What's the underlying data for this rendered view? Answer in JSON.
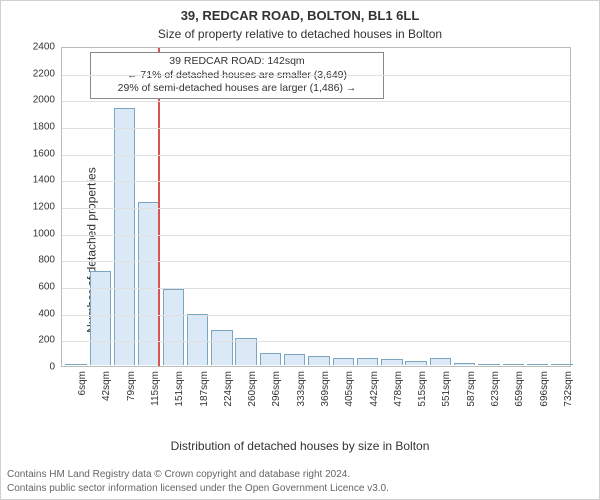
{
  "titles": {
    "line1": "39, REDCAR ROAD, BOLTON, BL1 6LL",
    "line2": "Size of property relative to detached houses in Bolton"
  },
  "axes": {
    "ylabel": "Number of detached properties",
    "xlabel": "Distribution of detached houses by size in Bolton",
    "ylim": [
      0,
      2400
    ],
    "ytick_step": 200,
    "label_fontsize": 12,
    "tick_fontsize": 10,
    "grid_color": "#e0e0e0",
    "axis_color": "#bbbbbb"
  },
  "chart": {
    "type": "histogram",
    "background_color": "#ffffff",
    "bar_fill": "#dbe9f6",
    "bar_stroke": "#7aa6c2",
    "bar_width": 0.8,
    "categories": [
      "6sqm",
      "42sqm",
      "79sqm",
      "115sqm",
      "151sqm",
      "187sqm",
      "224sqm",
      "260sqm",
      "296sqm",
      "333sqm",
      "369sqm",
      "405sqm",
      "442sqm",
      "478sqm",
      "515sqm",
      "551sqm",
      "587sqm",
      "623sqm",
      "659sqm",
      "696sqm",
      "732sqm"
    ],
    "values": [
      0,
      700,
      1930,
      1220,
      565,
      380,
      257,
      196,
      84,
      77,
      60,
      48,
      42,
      36,
      24,
      46,
      10,
      0,
      0,
      0,
      0
    ]
  },
  "marker": {
    "value_sqm": 142,
    "color": "#d9534f",
    "range": {
      "min_sqm": 6,
      "max_sqm": 732
    },
    "annotation": {
      "line1": "39 REDCAR ROAD: 142sqm",
      "line2": "← 71% of detached houses are smaller (3,649)",
      "line3": "29% of semi-detached houses are larger (1,486) →",
      "box_border": "#888888",
      "box_bg": "#ffffff",
      "fontsize": 10.5
    }
  },
  "footer": {
    "line1": "Contains HM Land Registry data © Crown copyright and database right 2024.",
    "line2": "Contains public sector information licensed under the Open Government Licence v3.0.",
    "color": "#666666",
    "fontsize": 10
  }
}
